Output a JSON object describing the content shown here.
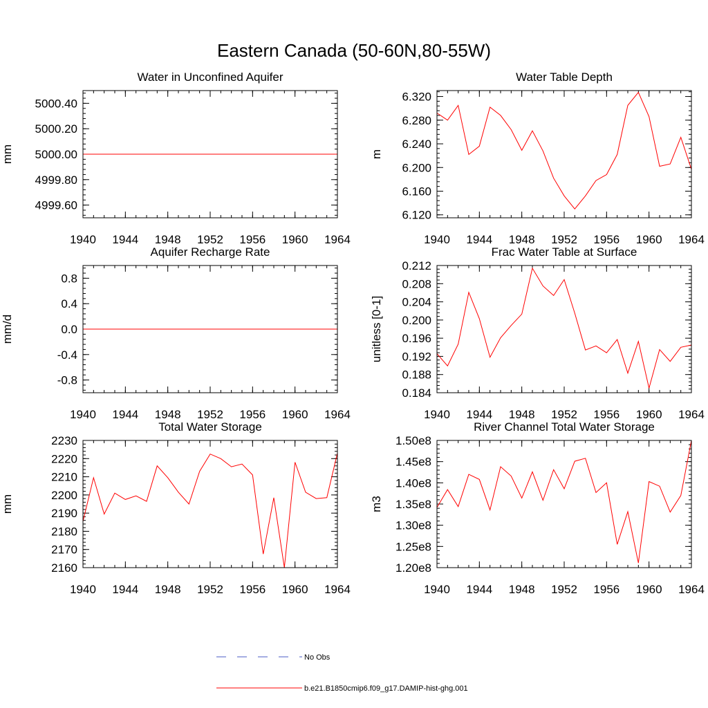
{
  "figure": {
    "title": "Eastern Canada (50-60N,80-55W)",
    "line_color": "#ff0000",
    "obs_color": "#4a5bc4",
    "legend": {
      "obs_label": "No Obs",
      "model_label": "b.e21.B1850cmip6.f09_g17.DAMIP-hist-ghg.001"
    }
  },
  "chart_data": [
    {
      "type": "line",
      "title": "Water in Unconfined Aquifer",
      "ylabel": "mm",
      "xlim": [
        1940,
        1964
      ],
      "ylim": [
        4999.5,
        5000.5
      ],
      "xticks": [
        1940,
        1944,
        1948,
        1952,
        1956,
        1960,
        1964
      ],
      "yticks": [
        4999.6,
        4999.8,
        5000.0,
        5000.2,
        5000.4
      ],
      "ytick_labels": [
        "4999.60",
        "4999.80",
        "5000.00",
        "5000.20",
        "5000.40"
      ],
      "series": [
        {
          "x": [
            1940,
            1941,
            1942,
            1943,
            1944,
            1945,
            1946,
            1947,
            1948,
            1949,
            1950,
            1951,
            1952,
            1953,
            1954,
            1955,
            1956,
            1957,
            1958,
            1959,
            1960,
            1961,
            1962,
            1963,
            1964
          ],
          "values": [
            5000,
            5000,
            5000,
            5000,
            5000,
            5000,
            5000,
            5000,
            5000,
            5000,
            5000,
            5000,
            5000,
            5000,
            5000,
            5000,
            5000,
            5000,
            5000,
            5000,
            5000,
            5000,
            5000,
            5000,
            5000
          ]
        }
      ]
    },
    {
      "type": "line",
      "title": "Water Table Depth",
      "ylabel": "m",
      "xlim": [
        1940,
        1964
      ],
      "ylim": [
        6.115,
        6.33
      ],
      "xticks": [
        1940,
        1944,
        1948,
        1952,
        1956,
        1960,
        1964
      ],
      "yticks": [
        6.12,
        6.16,
        6.2,
        6.24,
        6.28,
        6.32
      ],
      "ytick_labels": [
        "6.120",
        "6.160",
        "6.200",
        "6.240",
        "6.280",
        "6.320"
      ],
      "series": [
        {
          "x": [
            1940,
            1941,
            1942,
            1943,
            1944,
            1945,
            1946,
            1947,
            1948,
            1949,
            1950,
            1951,
            1952,
            1953,
            1954,
            1955,
            1956,
            1957,
            1958,
            1959,
            1960,
            1961,
            1962,
            1963,
            1964
          ],
          "values": [
            6.292,
            6.28,
            6.305,
            6.222,
            6.236,
            6.302,
            6.288,
            6.264,
            6.229,
            6.262,
            6.228,
            6.182,
            6.152,
            6.13,
            6.152,
            6.178,
            6.188,
            6.222,
            6.305,
            6.327,
            6.286,
            6.202,
            6.206,
            6.251,
            6.197
          ]
        }
      ]
    },
    {
      "type": "line",
      "title": "Aquifer Recharge Rate",
      "ylabel": "mm/d",
      "xlim": [
        1940,
        1964
      ],
      "ylim": [
        -1.0,
        1.0
      ],
      "xticks": [
        1940,
        1944,
        1948,
        1952,
        1956,
        1960,
        1964
      ],
      "yticks": [
        -0.8,
        -0.4,
        0.0,
        0.4,
        0.8
      ],
      "ytick_labels": [
        "-0.8",
        "-0.4",
        "0.0",
        "0.4",
        "0.8"
      ],
      "series": [
        {
          "x": [
            1940,
            1941,
            1942,
            1943,
            1944,
            1945,
            1946,
            1947,
            1948,
            1949,
            1950,
            1951,
            1952,
            1953,
            1954,
            1955,
            1956,
            1957,
            1958,
            1959,
            1960,
            1961,
            1962,
            1963,
            1964
          ],
          "values": [
            0,
            0,
            0,
            0,
            0,
            0,
            0,
            0,
            0,
            0,
            0,
            0,
            0,
            0,
            0,
            0,
            0,
            0,
            0,
            0,
            0,
            0,
            0,
            0,
            0
          ]
        }
      ]
    },
    {
      "type": "line",
      "title": "Frac Water Table at Surface",
      "ylabel": "unitless [0-1]",
      "xlim": [
        1940,
        1964
      ],
      "ylim": [
        0.184,
        0.212
      ],
      "xticks": [
        1940,
        1944,
        1948,
        1952,
        1956,
        1960,
        1964
      ],
      "yticks": [
        0.184,
        0.188,
        0.192,
        0.196,
        0.2,
        0.204,
        0.208,
        0.212
      ],
      "ytick_labels": [
        "0.184",
        "0.188",
        "0.192",
        "0.196",
        "0.200",
        "0.204",
        "0.208",
        "0.212"
      ],
      "series": [
        {
          "x": [
            1940,
            1941,
            1942,
            1943,
            1944,
            1945,
            1946,
            1947,
            1948,
            1949,
            1950,
            1951,
            1952,
            1953,
            1954,
            1955,
            1956,
            1957,
            1958,
            1959,
            1960,
            1961,
            1962,
            1963,
            1964
          ],
          "values": [
            0.1926,
            0.1899,
            0.1947,
            0.2061,
            0.2003,
            0.1918,
            0.1961,
            0.1988,
            0.2013,
            0.2114,
            0.2075,
            0.2054,
            0.2089,
            0.2015,
            0.1934,
            0.1943,
            0.1928,
            0.1957,
            0.1883,
            0.1953,
            0.185,
            0.1935,
            0.1909,
            0.194,
            0.1945
          ]
        }
      ]
    },
    {
      "type": "line",
      "title": "Total Water Storage",
      "ylabel": "mm",
      "xlim": [
        1940,
        1964
      ],
      "ylim": [
        2160,
        2230
      ],
      "xticks": [
        1940,
        1944,
        1948,
        1952,
        1956,
        1960,
        1964
      ],
      "yticks": [
        2160,
        2170,
        2180,
        2190,
        2200,
        2210,
        2220,
        2230
      ],
      "ytick_labels": [
        "2160",
        "2170",
        "2180",
        "2190",
        "2200",
        "2210",
        "2220",
        "2230"
      ],
      "series": [
        {
          "x": [
            1940,
            1941,
            1942,
            1943,
            1944,
            1945,
            1946,
            1947,
            1948,
            1949,
            1950,
            1951,
            1952,
            1953,
            1954,
            1955,
            1956,
            1957,
            1958,
            1959,
            1960,
            1961,
            1962,
            1963,
            1964
          ],
          "values": [
            2185.5,
            2209.5,
            2189.5,
            2201.0,
            2197.5,
            2199.5,
            2196.5,
            2216.0,
            2209.5,
            2201.5,
            2195.0,
            2213.0,
            2222.5,
            2220.0,
            2215.5,
            2217.0,
            2211.0,
            2167.5,
            2198.5,
            2160.0,
            2218.0,
            2201.5,
            2198.0,
            2198.5,
            2223.0
          ]
        }
      ]
    },
    {
      "type": "line",
      "title": "River Channel Total Water Storage",
      "ylabel": "m3",
      "xlim": [
        1940,
        1964
      ],
      "ylim": [
        120000000.0,
        150000000.0
      ],
      "xticks": [
        1940,
        1944,
        1948,
        1952,
        1956,
        1960,
        1964
      ],
      "yticks": [
        120000000.0,
        125000000.0,
        130000000.0,
        135000000.0,
        140000000.0,
        145000000.0,
        150000000.0
      ],
      "ytick_labels": [
        "1.20e8",
        "1.25e8",
        "1.30e8",
        "1.35e8",
        "1.40e8",
        "1.45e8",
        "1.50e8"
      ],
      "series": [
        {
          "x": [
            1940,
            1941,
            1942,
            1943,
            1944,
            1945,
            1946,
            1947,
            1948,
            1949,
            1950,
            1951,
            1952,
            1953,
            1954,
            1955,
            1956,
            1957,
            1958,
            1959,
            1960,
            1961,
            1962,
            1963,
            1964
          ],
          "values": [
            134200000.0,
            138400000.0,
            134400000.0,
            142000000.0,
            140800000.0,
            133600000.0,
            143800000.0,
            141600000.0,
            136400000.0,
            142600000.0,
            135900000.0,
            143100000.0,
            138600000.0,
            145100000.0,
            145800000.0,
            137700000.0,
            140000000.0,
            125500000.0,
            133200000.0,
            121100000.0,
            140300000.0,
            139200000.0,
            133100000.0,
            137000000.0,
            150000000.0
          ]
        }
      ]
    }
  ]
}
